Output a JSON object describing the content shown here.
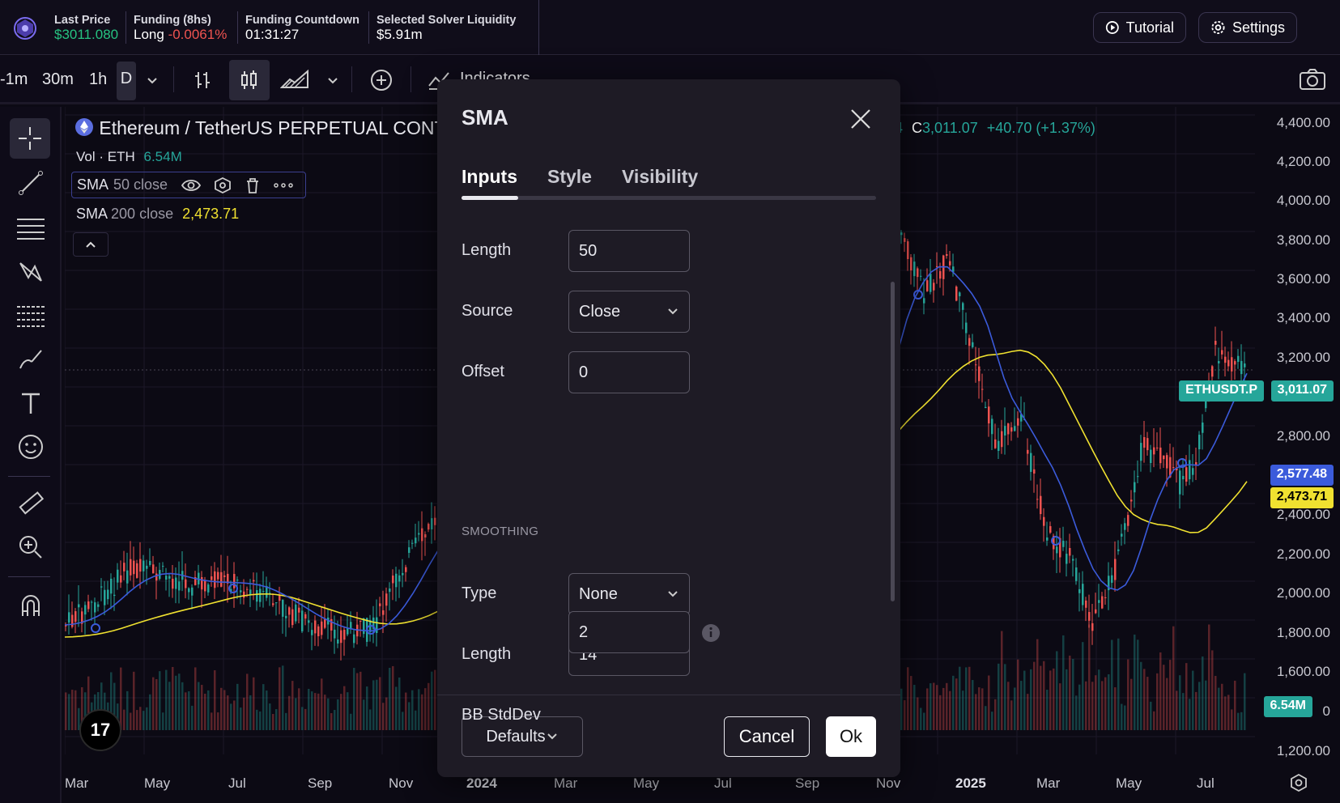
{
  "topbar": {
    "stats": [
      {
        "label": "Last Price",
        "value": "$3011.080"
      },
      {
        "label": "Funding (8hs)",
        "value_prefix": "Long",
        "value": "-0.0061%"
      },
      {
        "label": "Funding Countdown",
        "value": "01:31:27"
      },
      {
        "label": "Selected Solver Liquidity",
        "value": "$5.91m"
      }
    ],
    "tutorial_label": "Tutorial",
    "settings_label": "Settings"
  },
  "toolbar": {
    "intervals": [
      "-1m",
      "30m",
      "1h",
      "D"
    ],
    "indicators_label": "Indicators"
  },
  "chart": {
    "symbol_title": "Ethereum / TetherUS PERPETUAL CONT",
    "vol_label": "Vol · ETH",
    "vol_value": "6.54M",
    "sma50_label": "SMA",
    "sma50_params": "50 close",
    "sma200_label": "SMA",
    "sma200_params": "200 close",
    "sma200_value": "2,473.71",
    "ohlc_c_label": "C",
    "ohlc_c_value": "3,011.07",
    "ohlc_change": "+40.70 (+1.37%)",
    "ohlc_prefix": "4",
    "price_labels": [
      "4,400.00",
      "4,200.00",
      "4,000.00",
      "3,800.00",
      "3,600.00",
      "3,400.00",
      "3,200.00",
      "2,800.00",
      "2,400.00",
      "2,200.00",
      "2,000.00",
      "1,800.00",
      "1,600.00",
      "0",
      "1,200.00"
    ],
    "time_labels": [
      "Mar",
      "May",
      "Jul",
      "Sep",
      "Nov",
      "2024",
      "Mar",
      "May",
      "Jul",
      "Sep",
      "Nov",
      "2025",
      "Mar",
      "May",
      "Jul"
    ],
    "tag_symbol": "ETHUSDT.P",
    "tag_price": "3,011.07",
    "tag_sma50": "2,577.48",
    "tag_sma200": "2,473.71",
    "tag_vol": "6.54M",
    "tv_logo": "17",
    "colors": {
      "sma50": "#3b5bdb",
      "sma200": "#f0e130",
      "up": "#26a69a",
      "down": "#ef5350"
    }
  },
  "dialog": {
    "title": "SMA",
    "tabs": [
      "Inputs",
      "Style",
      "Visibility"
    ],
    "fields": {
      "length_label": "Length",
      "length_value": "50",
      "source_label": "Source",
      "source_value": "Close",
      "offset_label": "Offset",
      "offset_value": "0",
      "smoothing_section": "SMOOTHING",
      "type_label": "Type",
      "type_value": "None",
      "slength_label": "Length",
      "slength_value": "14",
      "bb_label": "BB StdDev",
      "bb_value": "2"
    },
    "defaults_label": "Defaults",
    "cancel_label": "Cancel",
    "ok_label": "Ok"
  }
}
